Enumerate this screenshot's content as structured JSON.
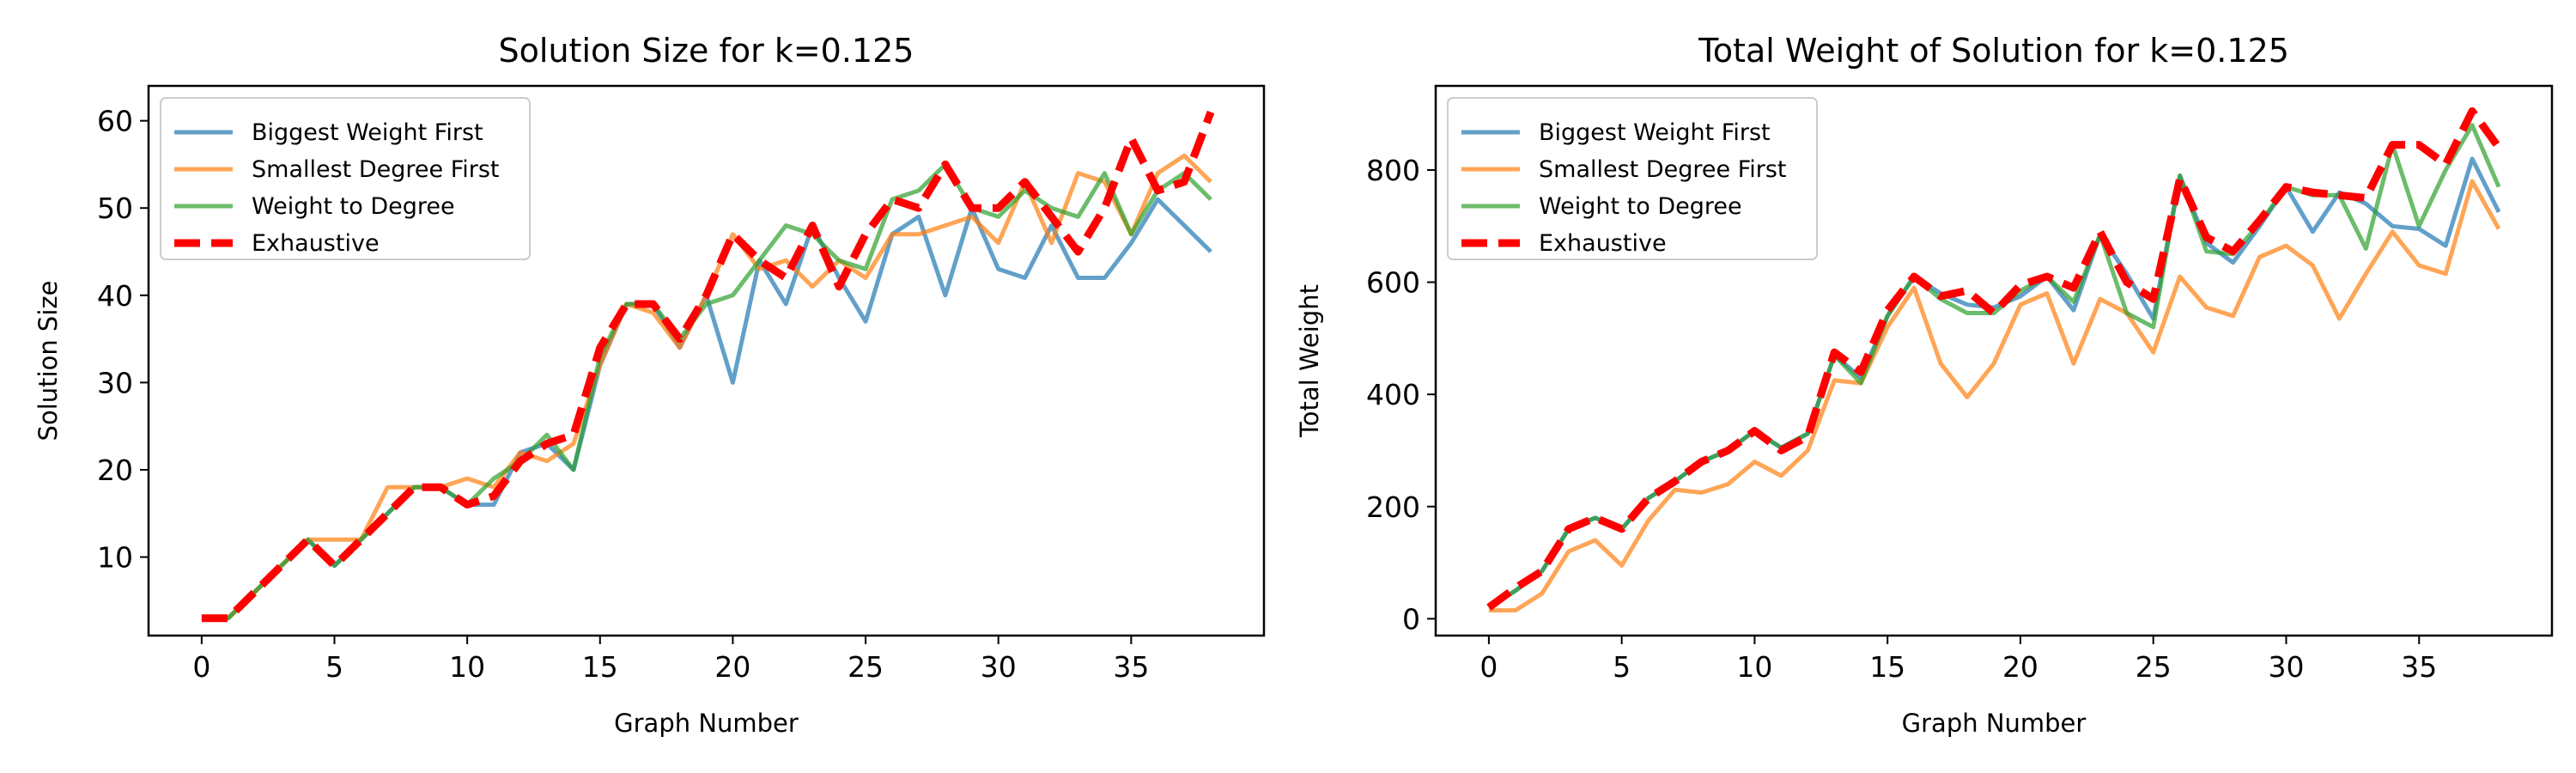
{
  "chart_data": [
    {
      "type": "line",
      "title": "Solution Size for k=0.125",
      "xlabel": "Graph Number",
      "ylabel": "Solution Size",
      "xlim": [
        -2,
        40
      ],
      "ylim": [
        1,
        64
      ],
      "xticks": [
        0,
        5,
        10,
        15,
        20,
        25,
        30,
        35
      ],
      "yticks": [
        10,
        20,
        30,
        40,
        50,
        60
      ],
      "legend_position": "top-left",
      "grid": false,
      "x": [
        0,
        1,
        2,
        3,
        4,
        5,
        6,
        7,
        8,
        9,
        10,
        11,
        12,
        13,
        14,
        15,
        16,
        17,
        18,
        19,
        20,
        21,
        22,
        23,
        24,
        25,
        26,
        27,
        28,
        29,
        30,
        31,
        32,
        33,
        34,
        35,
        36,
        37,
        38
      ],
      "series": [
        {
          "name": "Biggest Weight First",
          "color": "#1f77b4",
          "style": "solid",
          "values": [
            3,
            3,
            6,
            9,
            12,
            9,
            12,
            15,
            18,
            18,
            16,
            16,
            22,
            23,
            20,
            32,
            39,
            39,
            34,
            40,
            30,
            44,
            39,
            48,
            42,
            37,
            47,
            49,
            40,
            50,
            43,
            42,
            48,
            42,
            42,
            46,
            51,
            48,
            45
          ]
        },
        {
          "name": "Smallest Degree First",
          "color": "#ff7f0e",
          "style": "solid",
          "values": [
            3,
            3,
            6,
            9,
            12,
            12,
            12,
            18,
            18,
            18,
            19,
            18,
            22,
            21,
            23,
            32,
            39,
            38,
            34,
            40,
            47,
            43,
            44,
            41,
            44,
            42,
            47,
            47,
            48,
            49,
            46,
            53,
            46,
            54,
            53,
            47,
            54,
            56,
            53
          ]
        },
        {
          "name": "Weight to Degree",
          "color": "#2ca02c",
          "style": "solid",
          "values": [
            3,
            3,
            6,
            9,
            12,
            9,
            12,
            15,
            18,
            18,
            16,
            19,
            21,
            24,
            20,
            33,
            39,
            39,
            35,
            39,
            40,
            44,
            48,
            47,
            44,
            43,
            51,
            52,
            55,
            50,
            49,
            52,
            50,
            49,
            54,
            47,
            52,
            54,
            51
          ]
        },
        {
          "name": "Exhaustive",
          "color": "#ff0000",
          "style": "dashed",
          "values": [
            3,
            3,
            6,
            9,
            12,
            9,
            12,
            15,
            18,
            18,
            16,
            17,
            21,
            23,
            24,
            34,
            39,
            39,
            35,
            40,
            47,
            44,
            42,
            48,
            41,
            47,
            51,
            50,
            55,
            50,
            50,
            53,
            49,
            45,
            50,
            58,
            52,
            53,
            61
          ]
        }
      ]
    },
    {
      "type": "line",
      "title": "Total Weight of Solution for k=0.125",
      "xlabel": "Graph Number",
      "ylabel": "Total Weight",
      "xlim": [
        -2,
        40
      ],
      "ylim": [
        -30,
        950
      ],
      "xticks": [
        0,
        5,
        10,
        15,
        20,
        25,
        30,
        35
      ],
      "yticks": [
        0,
        200,
        400,
        600,
        800
      ],
      "legend_position": "top-left",
      "grid": false,
      "x": [
        0,
        1,
        2,
        3,
        4,
        5,
        6,
        7,
        8,
        9,
        10,
        11,
        12,
        13,
        14,
        15,
        16,
        17,
        18,
        19,
        20,
        21,
        22,
        23,
        24,
        25,
        26,
        27,
        28,
        29,
        30,
        31,
        32,
        33,
        34,
        35,
        36,
        37,
        38
      ],
      "series": [
        {
          "name": "Biggest Weight First",
          "color": "#1f77b4",
          "style": "solid",
          "values": [
            20,
            50,
            85,
            160,
            180,
            160,
            215,
            245,
            280,
            300,
            335,
            305,
            330,
            470,
            430,
            540,
            610,
            580,
            560,
            555,
            575,
            610,
            550,
            685,
            615,
            535,
            790,
            670,
            635,
            700,
            770,
            690,
            760,
            740,
            700,
            695,
            665,
            820,
            725
          ]
        },
        {
          "name": "Smallest Degree First",
          "color": "#ff7f0e",
          "style": "solid",
          "values": [
            15,
            15,
            45,
            120,
            140,
            95,
            175,
            230,
            225,
            240,
            280,
            255,
            300,
            425,
            420,
            520,
            590,
            455,
            395,
            455,
            560,
            580,
            455,
            570,
            545,
            475,
            610,
            555,
            540,
            645,
            665,
            630,
            535,
            615,
            690,
            630,
            615,
            780,
            695
          ]
        },
        {
          "name": "Weight to Degree",
          "color": "#2ca02c",
          "style": "solid",
          "values": [
            20,
            50,
            85,
            160,
            180,
            160,
            215,
            245,
            280,
            300,
            335,
            305,
            330,
            470,
            420,
            540,
            610,
            570,
            545,
            545,
            585,
            610,
            565,
            685,
            545,
            520,
            790,
            655,
            650,
            705,
            770,
            755,
            755,
            660,
            845,
            700,
            800,
            880,
            770
          ]
        },
        {
          "name": "Exhaustive",
          "color": "#ff0000",
          "style": "dashed",
          "values": [
            20,
            55,
            85,
            160,
            180,
            160,
            215,
            245,
            280,
            300,
            335,
            300,
            325,
            475,
            440,
            550,
            610,
            575,
            585,
            545,
            595,
            610,
            590,
            690,
            600,
            570,
            785,
            680,
            655,
            710,
            770,
            760,
            755,
            750,
            845,
            845,
            810,
            905,
            840
          ]
        }
      ]
    }
  ]
}
